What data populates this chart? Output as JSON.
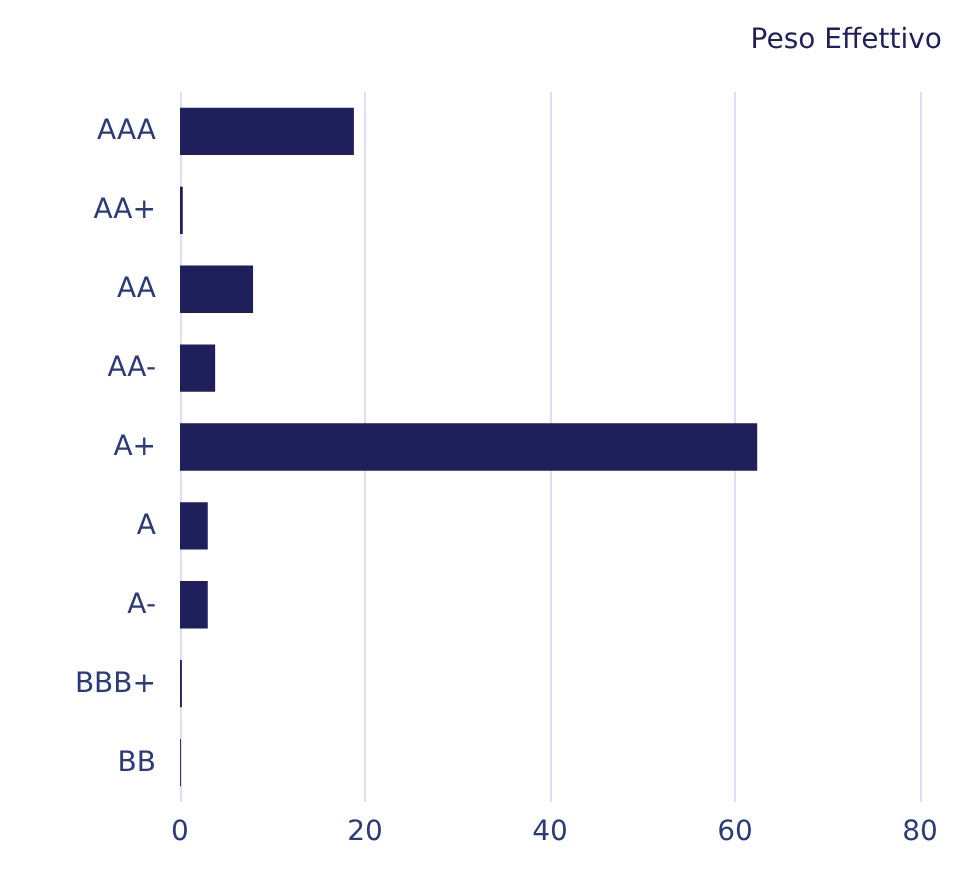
{
  "chart_data": {
    "type": "bar",
    "orientation": "horizontal",
    "categories": [
      "AAA",
      "AA+",
      "AA",
      "AA-",
      "A+",
      "A",
      "A-",
      "BBB+",
      "BB"
    ],
    "series": [
      {
        "name": "Peso Effettivo",
        "color": "#1f1f5c",
        "values": [
          18.8,
          0.3,
          7.9,
          3.8,
          62.4,
          3.0,
          3.0,
          0.2,
          0.1
        ]
      }
    ],
    "xlim": [
      0,
      80
    ],
    "xticks": [
      0,
      20,
      40,
      60,
      80
    ],
    "grid": "x",
    "legend": "top right"
  }
}
